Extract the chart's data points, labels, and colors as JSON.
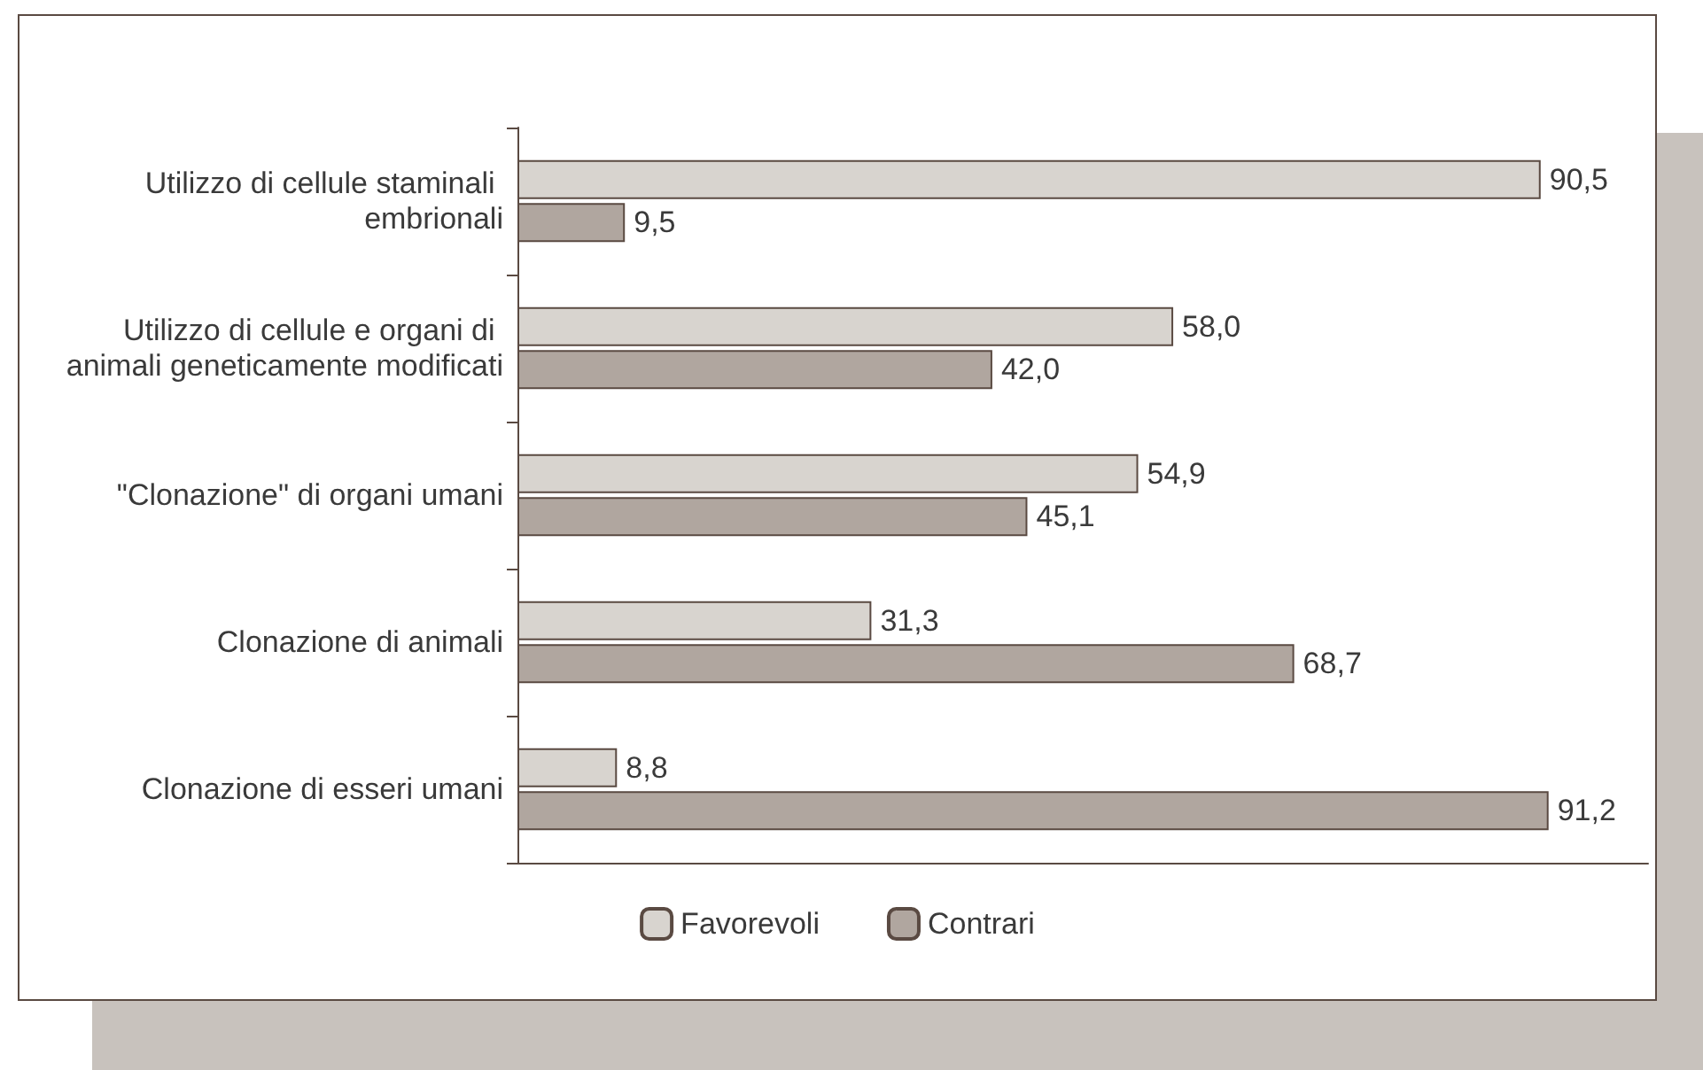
{
  "chart_data": {
    "type": "bar",
    "orientation": "horizontal",
    "categories": [
      "Utilizzo di cellule staminali embrionali",
      "Utilizzo di cellule e organi di animali geneticamente modificati",
      "\"Clonazione\" di organi umani",
      "Clonazione di animali",
      "Clonazione di esseri umani"
    ],
    "series": [
      {
        "name": "Favorevoli",
        "color": "#d8d4cf",
        "values": [
          90.5,
          58.0,
          54.9,
          31.3,
          8.8
        ],
        "value_labels": [
          "90,5",
          "58,0",
          "54,9",
          "31,3",
          "8,8"
        ]
      },
      {
        "name": "Contrari",
        "color": "#b0a69f",
        "values": [
          9.5,
          42.0,
          45.1,
          68.7,
          91.2
        ],
        "value_labels": [
          "9,5",
          "42,0",
          "45,1",
          "68,7",
          "91,2"
        ]
      }
    ],
    "xlim": [
      0,
      100
    ],
    "tick_labels": "y",
    "grid": false,
    "legend": "bottom"
  }
}
